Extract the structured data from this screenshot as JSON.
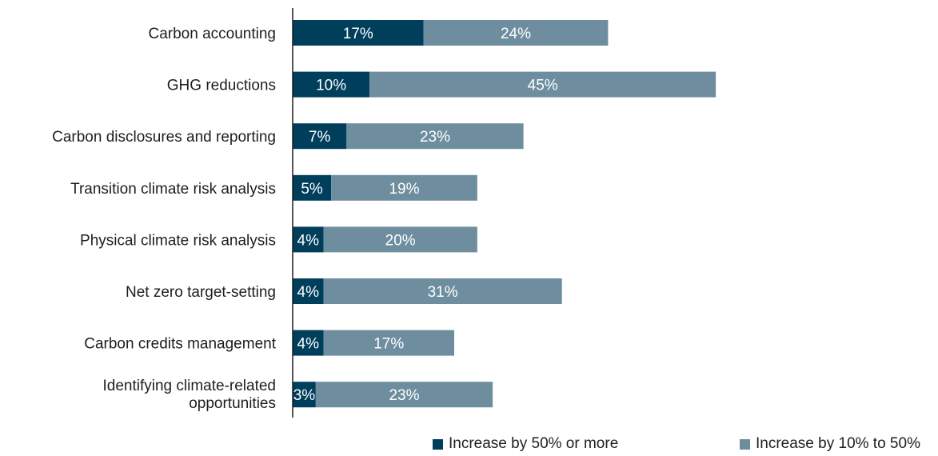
{
  "chart_data": {
    "type": "bar",
    "orientation": "horizontal",
    "stacked": true,
    "title": "",
    "xlabel": "",
    "ylabel": "",
    "xlim": [
      0,
      60
    ],
    "grid": false,
    "legend_position": "bottom",
    "categories": [
      "Carbon accounting",
      "GHG reductions",
      "Carbon disclosures and reporting",
      "Transition climate risk analysis",
      "Physical climate risk analysis",
      "Net zero target-setting",
      "Carbon credits management",
      "Identifying climate-related opportunities"
    ],
    "series": [
      {
        "name": "Increase by 50% or more",
        "color": "#003f5c",
        "values": [
          17,
          10,
          7,
          5,
          4,
          4,
          4,
          3
        ],
        "labels": [
          "17%",
          "10%",
          "7%",
          "5%",
          "4%",
          "4%",
          "4%",
          "3%"
        ]
      },
      {
        "name": "Increase by 10% to 50%",
        "color": "#6e8ea0",
        "values": [
          24,
          45,
          23,
          19,
          20,
          31,
          17,
          23
        ],
        "labels": [
          "24%",
          "45%",
          "23%",
          "19%",
          "20%",
          "31%",
          "17%",
          "23%"
        ]
      }
    ]
  }
}
